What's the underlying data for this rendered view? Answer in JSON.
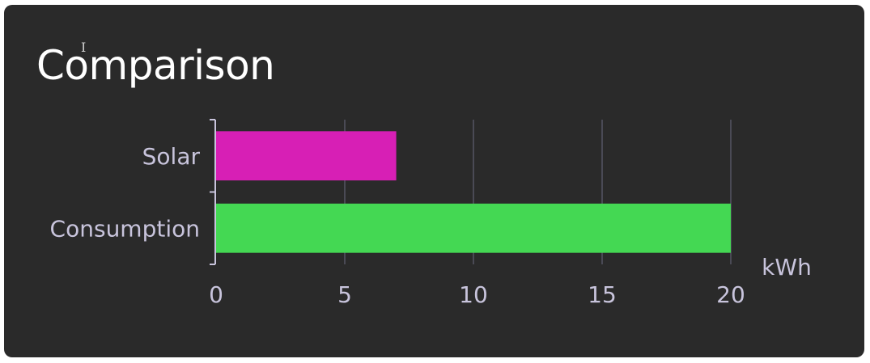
{
  "card": {
    "title": "Comparison",
    "cursor_icon": "text-cursor-icon"
  },
  "chart_data": {
    "type": "bar",
    "orientation": "horizontal",
    "title": "Comparison",
    "categories": [
      "Solar",
      "Consumption"
    ],
    "series": [
      {
        "values": [
          7,
          20
        ],
        "colors": [
          "#d71fb5",
          "#44d853"
        ]
      }
    ],
    "xlabel": "kWh",
    "ylabel": "",
    "xlim": [
      0,
      20
    ],
    "xticks": [
      0,
      5,
      10,
      15,
      20
    ],
    "grid": true,
    "legend": "none"
  },
  "colors": {
    "card_background": "#2a2a2a",
    "gridline": "#4a4a55",
    "axis": "#c8c4dc",
    "text": "#c8c4dc",
    "title": "#ffffff"
  }
}
